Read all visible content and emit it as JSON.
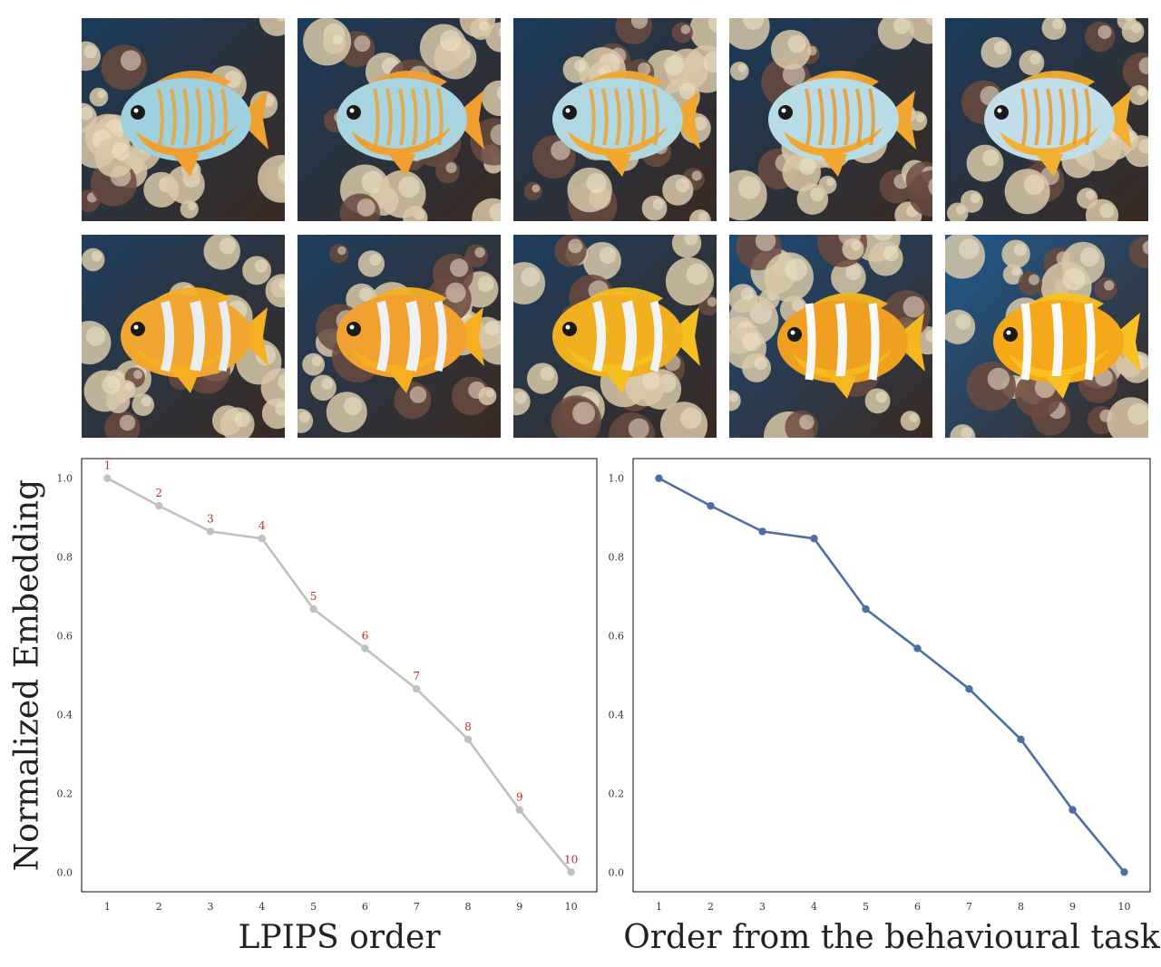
{
  "thumbnails": [
    {
      "index": 1,
      "body": "#9fd0dd",
      "belly": "#f0a030",
      "stripe": "#e8a43a",
      "bg": "#1a3a5a",
      "stripe_kind": "thin"
    },
    {
      "index": 2,
      "body": "#a8d4e0",
      "belly": "#f0a030",
      "stripe": "#e8a43a",
      "bg": "#1a3a5a",
      "stripe_kind": "thin"
    },
    {
      "index": 3,
      "body": "#b0d8e0",
      "belly": "#f2a830",
      "stripe": "#e8a43a",
      "bg": "#1a3a5a",
      "stripe_kind": "thin"
    },
    {
      "index": 4,
      "body": "#b8dce6",
      "belly": "#f2a830",
      "stripe": "#e89a30",
      "bg": "#1a3a5a",
      "stripe_kind": "thin"
    },
    {
      "index": 5,
      "body": "#c0dde8",
      "belly": "#f2b030",
      "stripe": "#e89a30",
      "bg": "#1a3a5a",
      "stripe_kind": "thin"
    },
    {
      "index": 6,
      "body": "#f0a630",
      "belly": "#f4b020",
      "stripe": "#e8eef2",
      "bg": "#1e3e5e",
      "stripe_kind": "wide"
    },
    {
      "index": 7,
      "body": "#f2a030",
      "belly": "#f4b020",
      "stripe": "#eef2f4",
      "bg": "#1e3e5e",
      "stripe_kind": "wide"
    },
    {
      "index": 8,
      "body": "#f0b020",
      "belly": "#f4c020",
      "stripe": "#f2f4f6",
      "bg": "#1e3e5e",
      "stripe_kind": "wide"
    },
    {
      "index": 9,
      "body": "#f0a020",
      "belly": "#f4b820",
      "stripe": "#f8f8f8",
      "bg": "#1c4a78",
      "stripe_kind": "bands"
    },
    {
      "index": 10,
      "body": "#f5a818",
      "belly": "#f8c020",
      "stripe": "#fafafa",
      "bg": "#1e5a90",
      "stripe_kind": "bands"
    }
  ],
  "colors": {
    "left_series": "#c0c0c0",
    "right_series": "#4c6ea6",
    "annotation": "#cc2a2a",
    "axis": "#333333"
  },
  "shared": {
    "ylabel": "Normalized Embedding"
  },
  "chart_data": [
    {
      "type": "line",
      "xlabel": "LPIPS order",
      "ylabel": "Normalized Embedding",
      "x": [
        1,
        2,
        3,
        4,
        5,
        6,
        7,
        8,
        9,
        10
      ],
      "series": [
        {
          "values": [
            1.0,
            0.93,
            0.865,
            0.847,
            0.668,
            0.568,
            0.465,
            0.337,
            0.158,
            0.0
          ]
        }
      ],
      "point_labels": [
        "1",
        "2",
        "3",
        "4",
        "5",
        "6",
        "7",
        "8",
        "9",
        "10"
      ],
      "xticks": [
        "1",
        "2",
        "3",
        "4",
        "5",
        "6",
        "7",
        "8",
        "9",
        "10"
      ],
      "yticks": [
        "0.0",
        "0.2",
        "0.4",
        "0.6",
        "0.8",
        "1.0"
      ],
      "xlim": [
        0.5,
        10.5
      ],
      "ylim": [
        -0.05,
        1.05
      ],
      "grid": false
    },
    {
      "type": "line",
      "xlabel": "Order from the behavioural task",
      "ylabel": "",
      "x": [
        1,
        2,
        3,
        4,
        5,
        6,
        7,
        8,
        9,
        10
      ],
      "series": [
        {
          "values": [
            1.0,
            0.93,
            0.865,
            0.847,
            0.668,
            0.568,
            0.465,
            0.337,
            0.158,
            0.0
          ]
        }
      ],
      "xticks": [
        "1",
        "2",
        "3",
        "4",
        "5",
        "6",
        "7",
        "8",
        "9",
        "10"
      ],
      "yticks": [
        "0.0",
        "0.2",
        "0.4",
        "0.6",
        "0.8",
        "1.0"
      ],
      "xlim": [
        0.5,
        10.5
      ],
      "ylim": [
        -0.05,
        1.05
      ],
      "grid": false
    }
  ]
}
